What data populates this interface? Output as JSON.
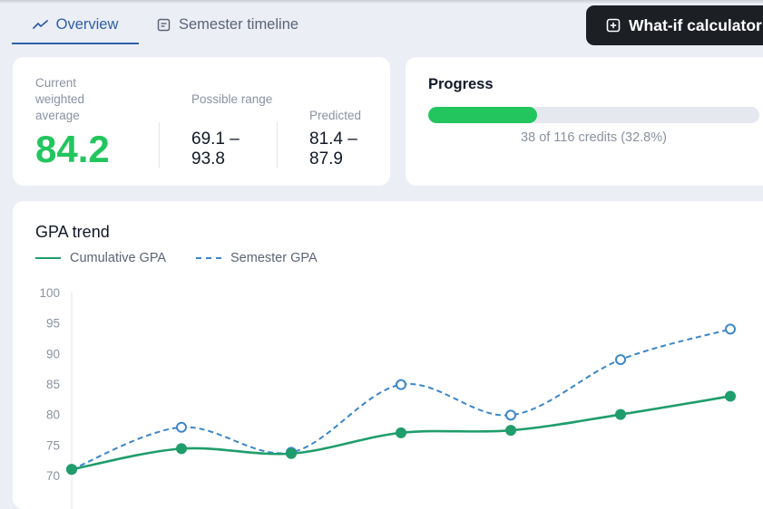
{
  "tabs": [
    {
      "label": "Overview",
      "icon": "trend-line-icon",
      "active": true
    },
    {
      "label": "Semester timeline",
      "icon": "document-icon",
      "active": false
    }
  ],
  "actions": {
    "whatif_label": "What-if calculator",
    "whatif_icon": "plus-square-icon"
  },
  "stats": {
    "current_label": "Current weighted average",
    "current_value": "84.2",
    "range_label": "Possible range",
    "range_value": "69.1 – 93.8",
    "predicted_label": "Predicted",
    "predicted_value": "81.4 – 87.9"
  },
  "progress": {
    "title": "Progress",
    "credits_text": "38 of 116 credits (32.8%)",
    "fraction": 0.328
  },
  "colors": {
    "accent": "#2f5fa8",
    "success": "#22c55e",
    "cumulative": "#1f9d6b",
    "semester": "#3b86c9"
  },
  "chart_data": {
    "type": "line",
    "title": "GPA trend",
    "ylim": [
      70,
      100
    ],
    "yticks": [
      70,
      75,
      80,
      85,
      90,
      95,
      100
    ],
    "x": [
      1,
      2,
      3,
      4,
      5,
      6,
      7
    ],
    "legend": "top-left",
    "grid": false,
    "series": [
      {
        "name": "Cumulative GPA",
        "style": "solid",
        "values": [
          71,
          74.4,
          73.6,
          77,
          77.4,
          80,
          83
        ]
      },
      {
        "name": "Semester GPA",
        "style": "dashed",
        "values": [
          71,
          77.9,
          73.8,
          84.9,
          79.9,
          89,
          94
        ]
      }
    ]
  }
}
